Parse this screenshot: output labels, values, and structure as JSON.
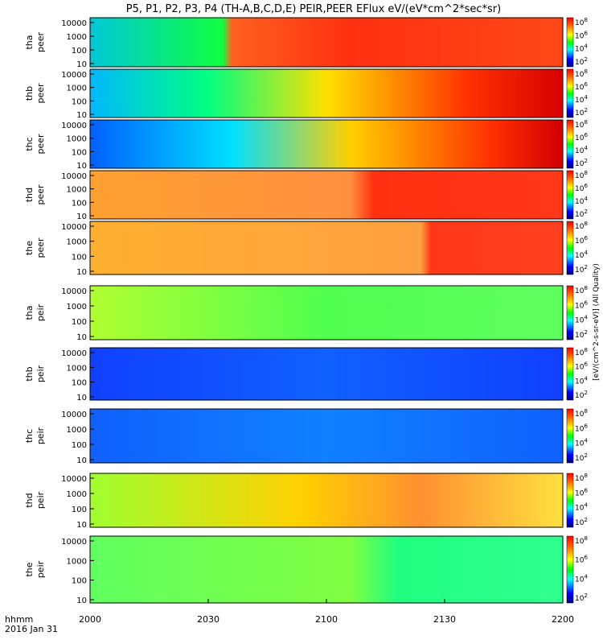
{
  "chart_data": {
    "type": "heatmap",
    "title": "P5, P1, P2, P3, P4 (TH-A,B,C,D,E) PEIR,PEER EFlux eV/(eV*cm^2*sec*sr)",
    "x_corner_label": "hhmm",
    "x_date_label": "2016 Jan 31",
    "x_ticks": [
      "2000",
      "2030",
      "2100",
      "2130",
      "2200"
    ],
    "y_ticks": [
      "10",
      "100",
      "1000",
      "10000"
    ],
    "colorbar_label": "[eV/(cm^2-s-sr-eV)] (All Quality)",
    "colorbar_ticks_peer": [
      "10^2",
      "10^4",
      "10^6",
      "10^8"
    ],
    "colorbar_ticks_peir": [
      "10^2",
      "10^4",
      "10^6",
      "10^8"
    ],
    "panels": [
      {
        "probe": "tha",
        "species": "peer",
        "label_top": "tha",
        "label_bottom": "peer"
      },
      {
        "probe": "thb",
        "species": "peer",
        "label_top": "thb",
        "label_bottom": "peer"
      },
      {
        "probe": "thc",
        "species": "peer",
        "label_top": "thc",
        "label_bottom": "peer"
      },
      {
        "probe": "thd",
        "species": "peer",
        "label_top": "thd",
        "label_bottom": "peer"
      },
      {
        "probe": "the",
        "species": "peer",
        "label_top": "the",
        "label_bottom": "peer"
      },
      {
        "probe": "tha",
        "species": "peir",
        "label_top": "tha",
        "label_bottom": "peir"
      },
      {
        "probe": "thb",
        "species": "peir",
        "label_top": "thb",
        "label_bottom": "peir"
      },
      {
        "probe": "thc",
        "species": "peir",
        "label_top": "thc",
        "label_bottom": "peir"
      },
      {
        "probe": "thd",
        "species": "peir",
        "label_top": "thd",
        "label_bottom": "peir"
      },
      {
        "probe": "the",
        "species": "peir",
        "label_top": "the",
        "label_bottom": "peir"
      }
    ]
  }
}
